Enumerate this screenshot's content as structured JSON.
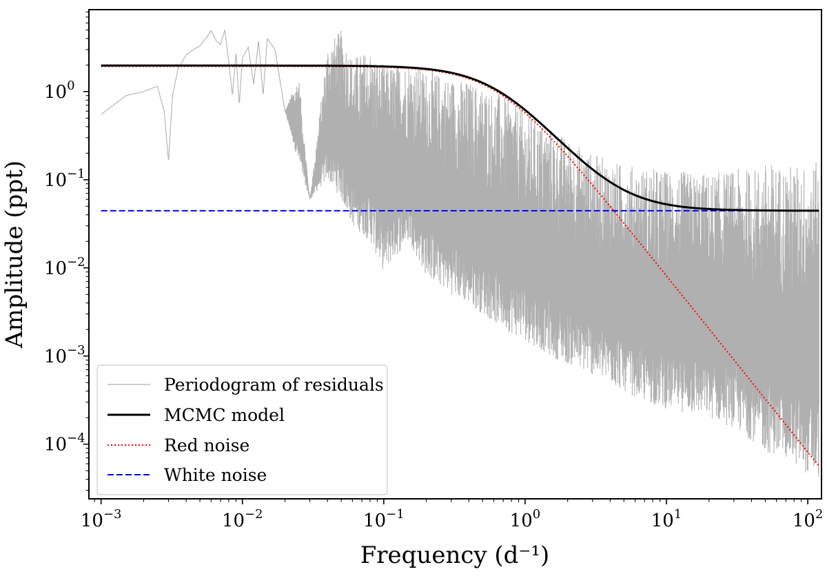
{
  "chart_data": {
    "type": "line",
    "title": "",
    "xlabel": "Frequency (d⁻¹)",
    "ylabel": "Amplitude (ppt)",
    "xscale": "log",
    "yscale": "log",
    "xlim": [
      0.00082,
      125
    ],
    "ylim": [
      2.4e-05,
      8.5
    ],
    "xticks": [
      {
        "value": 0.001,
        "base": "10",
        "exp": "−3"
      },
      {
        "value": 0.01,
        "base": "10",
        "exp": "−2"
      },
      {
        "value": 0.1,
        "base": "10",
        "exp": "−1"
      },
      {
        "value": 1,
        "base": "10",
        "exp": "0"
      },
      {
        "value": 10,
        "base": "10",
        "exp": "1"
      },
      {
        "value": 100,
        "base": "10",
        "exp": "2"
      }
    ],
    "yticks": [
      {
        "value": 0.0001,
        "base": "10",
        "exp": "−4"
      },
      {
        "value": 0.001,
        "base": "10",
        "exp": "−3"
      },
      {
        "value": 0.01,
        "base": "10",
        "exp": "−2"
      },
      {
        "value": 0.1,
        "base": "10",
        "exp": "−1"
      },
      {
        "value": 1,
        "base": "10",
        "exp": "0"
      }
    ],
    "grid": false,
    "legend_position": "bottom-left",
    "series": [
      {
        "name": "Periodogram of residuals",
        "style": "solid-thin",
        "color": "#b0b0b0",
        "x": [
          0.001,
          0.0015,
          0.002,
          0.0025,
          0.0028,
          0.003,
          0.0032,
          0.0035,
          0.004,
          0.0045,
          0.005,
          0.0055,
          0.006,
          0.0065,
          0.007,
          0.0075,
          0.008,
          0.0085,
          0.009,
          0.0095,
          0.01,
          0.011,
          0.012,
          0.013,
          0.014,
          0.015,
          0.017,
          0.02,
          0.025,
          0.03,
          0.04,
          0.05,
          0.06,
          0.08,
          0.1,
          0.15,
          0.2,
          0.3,
          0.5,
          0.7,
          1,
          1.5,
          2,
          3,
          5,
          7,
          10,
          20,
          30,
          44,
          50,
          70,
          90,
          120
        ],
        "y": [
          0.55,
          0.9,
          1.0,
          1.15,
          0.6,
          0.16,
          0.9,
          1.8,
          2.6,
          3.0,
          3.3,
          4.0,
          4.9,
          3.8,
          3.4,
          5.0,
          2.2,
          0.9,
          2.8,
          0.7,
          2.4,
          3.2,
          1.2,
          3.8,
          0.9,
          4.0,
          3.0,
          0.6,
          1.6,
          0.06,
          3.5,
          5.0,
          2.5,
          3.0,
          2.0,
          2.2,
          1.8,
          1.5,
          1.2,
          0.9,
          0.6,
          0.4,
          0.3,
          0.2,
          0.15,
          0.14,
          0.13,
          0.12,
          0.13,
          0.14,
          0.16,
          0.15,
          0.15,
          0.16
        ],
        "y_low": [
          0.55,
          0.9,
          1.0,
          1.15,
          0.6,
          0.16,
          0.9,
          1.8,
          2.6,
          3.0,
          3.3,
          4.0,
          4.9,
          3.8,
          3.4,
          5.0,
          2.2,
          0.9,
          2.8,
          0.7,
          2.4,
          3.2,
          1.2,
          3.8,
          0.9,
          4.0,
          3.0,
          0.6,
          0.15,
          0.06,
          0.1,
          0.06,
          0.03,
          0.02,
          0.009,
          0.02,
          0.008,
          0.005,
          0.003,
          0.002,
          0.0015,
          0.001,
          0.0008,
          0.0006,
          0.0004,
          0.0003,
          0.00025,
          0.0002,
          0.00015,
          0.0001,
          8e-05,
          7e-05,
          5e-05,
          4e-05
        ]
      },
      {
        "name": "MCMC model",
        "style": "solid",
        "color": "#000000",
        "model": "lorentzian",
        "A0": 1.93,
        "nu_char": 0.65,
        "gamma": 2.0,
        "white": 0.0445
      },
      {
        "name": "Red noise",
        "style": "dotted",
        "color": "#ff0000",
        "model": "lorentzian",
        "A0": 1.93,
        "nu_char": 0.65,
        "gamma": 2.0,
        "white": 0
      },
      {
        "name": "White noise",
        "style": "dashed",
        "color": "#0000ff",
        "value": 0.0445
      }
    ]
  }
}
